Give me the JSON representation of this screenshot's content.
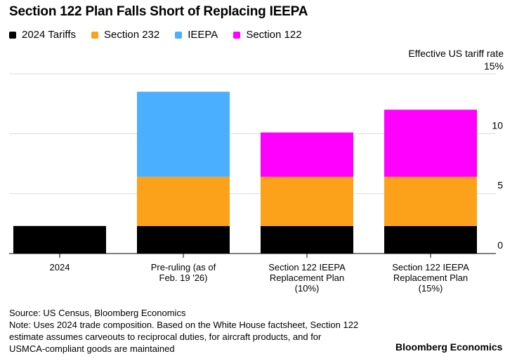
{
  "chart_data": {
    "type": "bar",
    "stacked": true,
    "title": "Section 122 Plan Falls Short of Replacing IEEPA",
    "xlabel": "",
    "ylabel": "Effective US tariff rate",
    "ylim": [
      0,
      15
    ],
    "yticks": [
      0,
      5,
      10,
      15
    ],
    "ytick_labels": [
      "0",
      "5",
      "10",
      "15%"
    ],
    "grid": true,
    "legend_position": "top-left",
    "categories": [
      "2024",
      "Pre-ruling (as of Feb. 19 '26)",
      "Section 122 IEEPA Replacement Plan (10%)",
      "Section 122 IEEPA Replacement Plan (15%)"
    ],
    "category_label_lines": [
      [
        "2024"
      ],
      [
        "Pre-ruling (as of",
        "Feb. 19 '26)"
      ],
      [
        "Section 122 IEEPA",
        "Replacement Plan",
        "(10%)"
      ],
      [
        "Section 122 IEEPA",
        "Replacement Plan",
        "(15%)"
      ]
    ],
    "series": [
      {
        "name": "2024 Tariffs",
        "color": "#000000",
        "values": [
          2.3,
          2.3,
          2.3,
          2.3
        ]
      },
      {
        "name": "Section 232",
        "color": "#FBA21A",
        "values": [
          0,
          4.1,
          4.1,
          4.1
        ]
      },
      {
        "name": "IEEPA",
        "color": "#4AAFFF",
        "values": [
          0,
          7.1,
          0,
          0
        ]
      },
      {
        "name": "Section 122",
        "color": "#FF00FF",
        "values": [
          0,
          0,
          3.7,
          5.6
        ]
      }
    ]
  },
  "legend": [
    {
      "label": "2024 Tariffs",
      "color": "#000000"
    },
    {
      "label": "Section 232",
      "color": "#FBA21A"
    },
    {
      "label": "IEEPA",
      "color": "#4AAFFF"
    },
    {
      "label": "Section 122",
      "color": "#FF00FF"
    }
  ],
  "footer": {
    "source": "Source: US Census, Bloomberg Economics",
    "note_lines": [
      "Note: Uses 2024 trade composition. Based on the White House factsheet, Section 122",
      "estimate assumes carveouts to reciprocal duties, for aircraft products, and for",
      "USMCA-compliant goods are maintained"
    ],
    "brand": "Bloomberg Economics"
  }
}
